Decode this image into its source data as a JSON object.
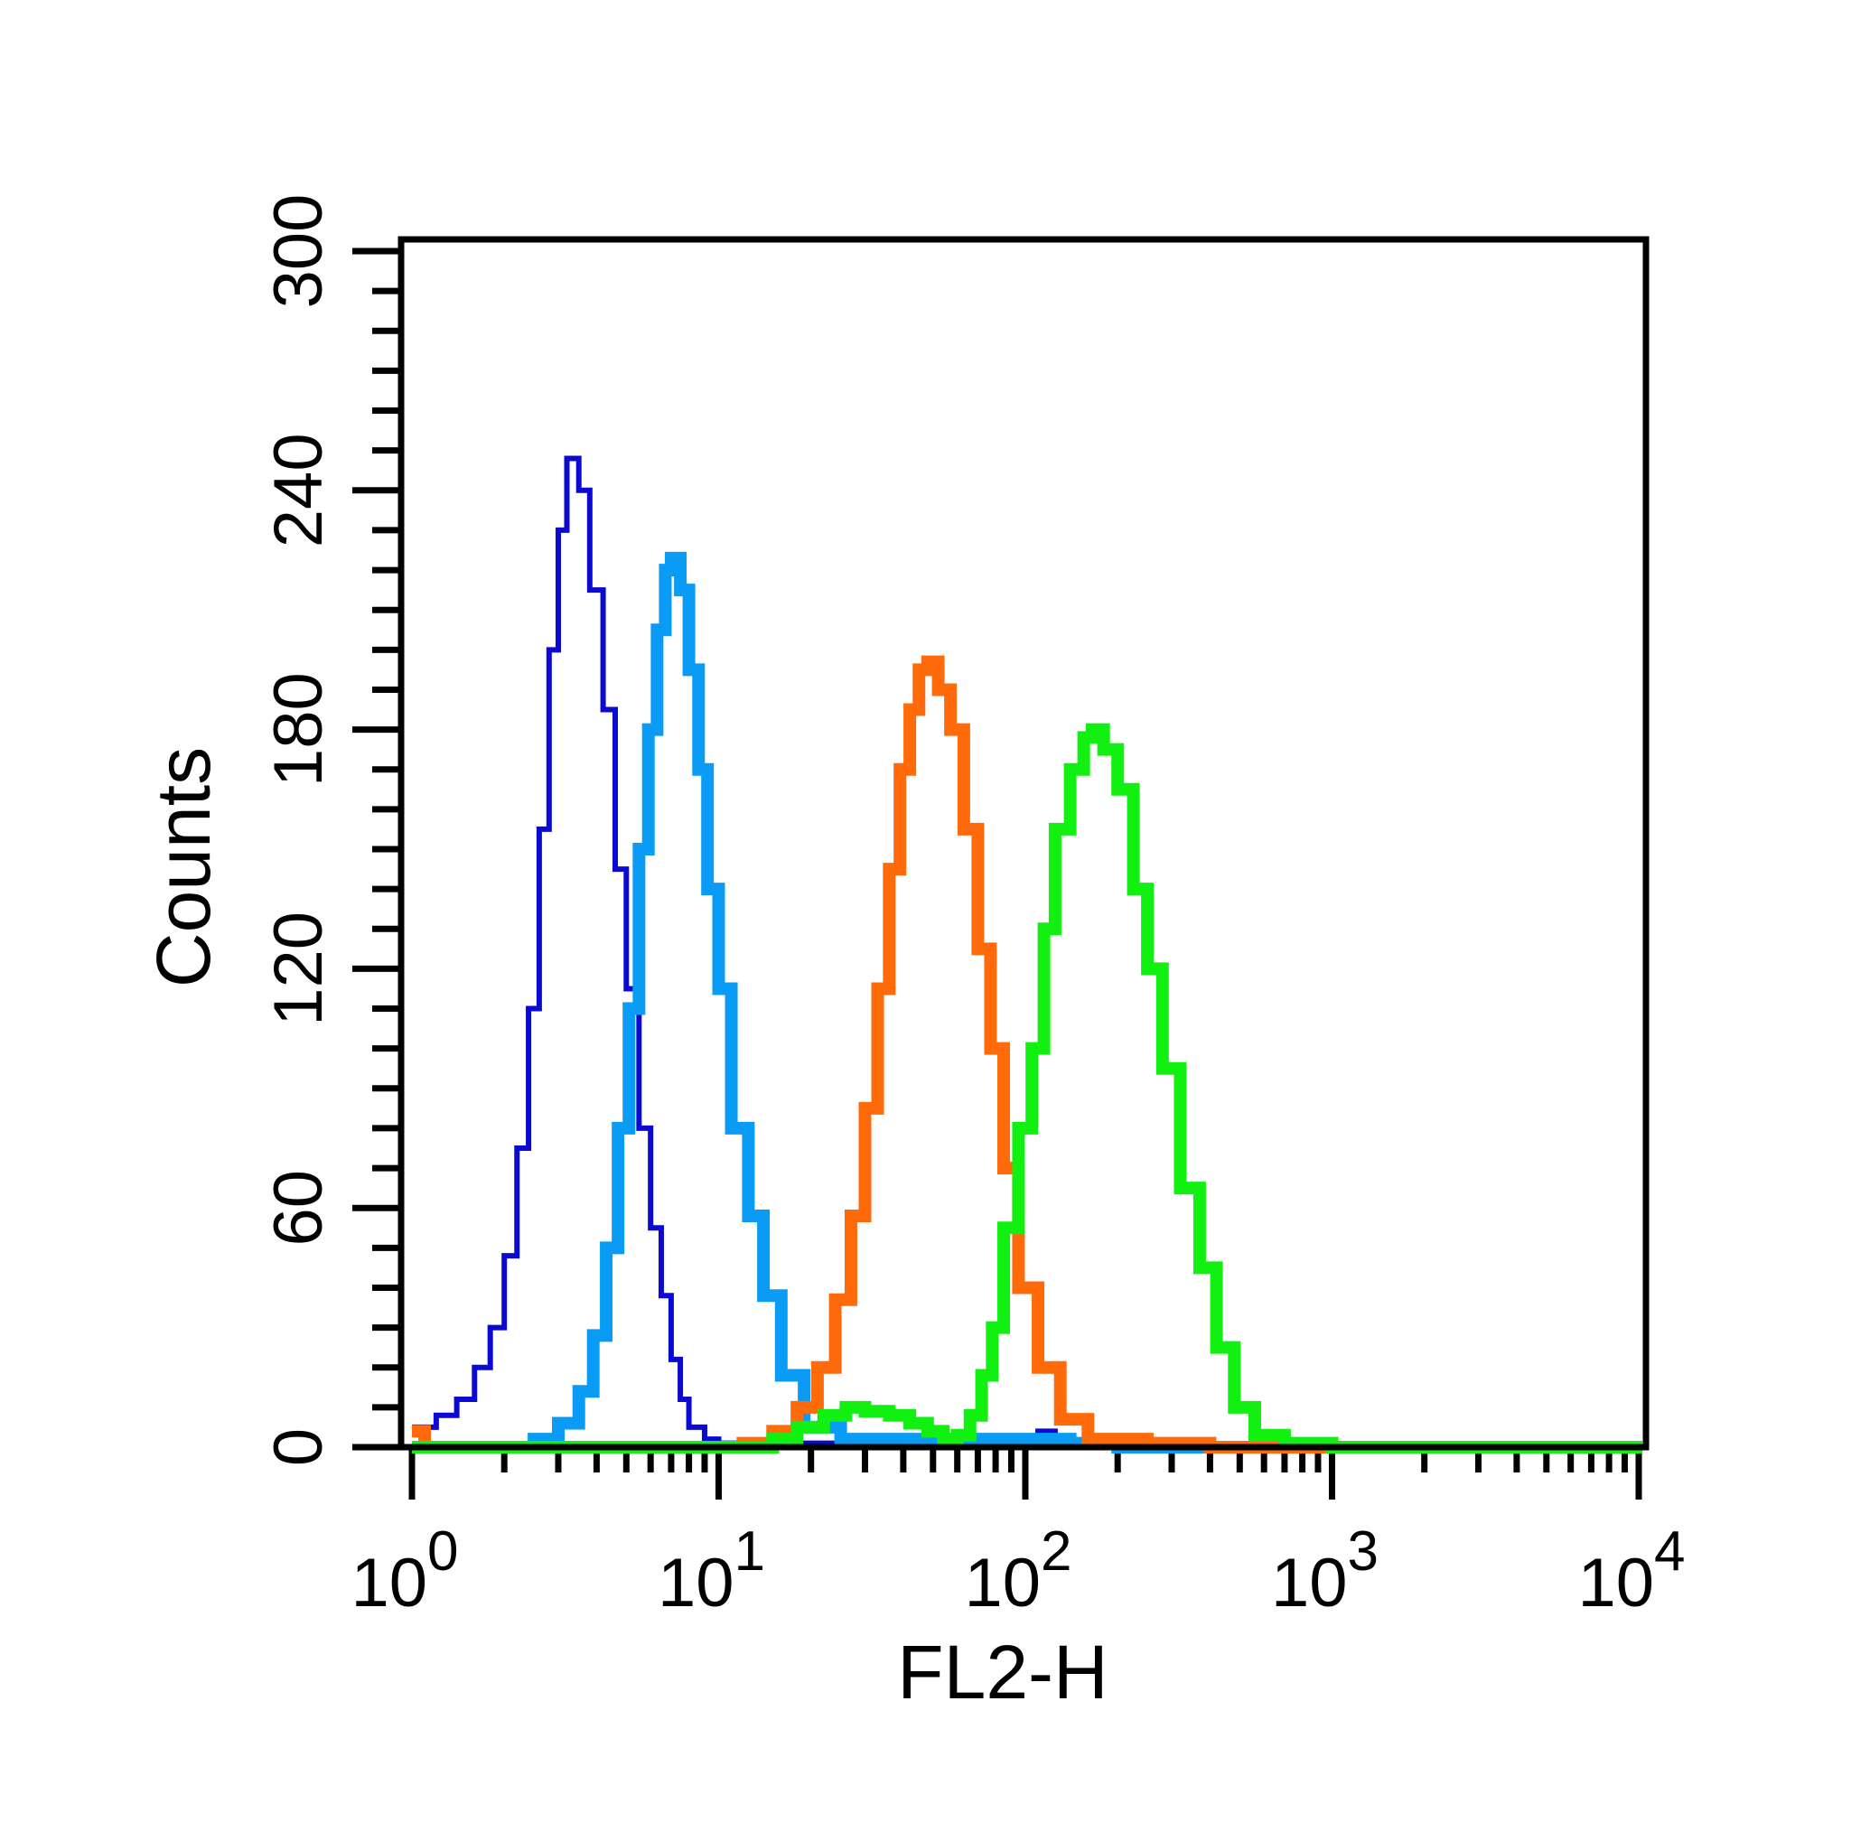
{
  "chart_data": {
    "type": "histogram",
    "xlabel": "FL2-H",
    "ylabel": "Counts",
    "xscale": "log",
    "xlim": [
      1,
      10000
    ],
    "ylim": [
      0,
      300
    ],
    "grid": false,
    "yticks": [
      0,
      60,
      120,
      180,
      240,
      300
    ],
    "xticks": [
      {
        "value": 1,
        "base": "10",
        "exp": "0"
      },
      {
        "value": 10,
        "base": "10",
        "exp": "1"
      },
      {
        "value": 100,
        "base": "10",
        "exp": "2"
      },
      {
        "value": 1000,
        "base": "10",
        "exp": "3"
      },
      {
        "value": 10000,
        "base": "10",
        "exp": "4"
      }
    ],
    "series": [
      {
        "color": "#0a0ad2",
        "peak_x": 3.2,
        "peak_y": 248,
        "points": [
          [
            1.0,
            5
          ],
          [
            1.2,
            8
          ],
          [
            1.4,
            12
          ],
          [
            1.6,
            20
          ],
          [
            1.8,
            30
          ],
          [
            2.0,
            48
          ],
          [
            2.2,
            75
          ],
          [
            2.4,
            110
          ],
          [
            2.6,
            155
          ],
          [
            2.8,
            200
          ],
          [
            3.0,
            230
          ],
          [
            3.2,
            248
          ],
          [
            3.5,
            240
          ],
          [
            3.8,
            215
          ],
          [
            4.2,
            185
          ],
          [
            4.6,
            145
          ],
          [
            5.0,
            115
          ],
          [
            5.5,
            80
          ],
          [
            6.0,
            55
          ],
          [
            6.5,
            38
          ],
          [
            7.0,
            22
          ],
          [
            7.5,
            12
          ],
          [
            8.0,
            5
          ],
          [
            9.0,
            2
          ],
          [
            10,
            1
          ],
          [
            100,
            1
          ],
          [
            110,
            4
          ],
          [
            125,
            0
          ],
          [
            10000,
            0
          ]
        ]
      },
      {
        "color": "#0a9cf5",
        "peak_x": 7.0,
        "peak_y": 223,
        "points": [
          [
            1.0,
            0
          ],
          [
            2.0,
            0
          ],
          [
            2.5,
            2
          ],
          [
            3.0,
            6
          ],
          [
            3.5,
            14
          ],
          [
            3.9,
            28
          ],
          [
            4.3,
            50
          ],
          [
            4.7,
            80
          ],
          [
            5.1,
            110
          ],
          [
            5.5,
            150
          ],
          [
            5.9,
            180
          ],
          [
            6.3,
            205
          ],
          [
            6.7,
            220
          ],
          [
            7.0,
            223
          ],
          [
            7.5,
            215
          ],
          [
            8.0,
            195
          ],
          [
            8.6,
            170
          ],
          [
            9.2,
            140
          ],
          [
            10.0,
            115
          ],
          [
            11.0,
            80
          ],
          [
            12.5,
            58
          ],
          [
            14.0,
            38
          ],
          [
            16.0,
            18
          ],
          [
            19.0,
            5
          ],
          [
            25.0,
            2
          ],
          [
            40,
            2
          ],
          [
            60,
            2
          ],
          [
            90,
            2
          ],
          [
            140,
            1
          ],
          [
            200,
            0
          ],
          [
            10000,
            0
          ]
        ]
      },
      {
        "color": "#ff6a0a",
        "peak_x": 48,
        "peak_y": 197,
        "points": [
          [
            1.0,
            4
          ],
          [
            1.1,
            0
          ],
          [
            8,
            0
          ],
          [
            12,
            1
          ],
          [
            15,
            4
          ],
          [
            18,
            10
          ],
          [
            21,
            20
          ],
          [
            24,
            37
          ],
          [
            27,
            58
          ],
          [
            30,
            85
          ],
          [
            33,
            115
          ],
          [
            36,
            145
          ],
          [
            39,
            170
          ],
          [
            42,
            185
          ],
          [
            45,
            195
          ],
          [
            48,
            197
          ],
          [
            52,
            190
          ],
          [
            57,
            180
          ],
          [
            63,
            155
          ],
          [
            70,
            125
          ],
          [
            77,
            100
          ],
          [
            85,
            70
          ],
          [
            95,
            40
          ],
          [
            110,
            20
          ],
          [
            130,
            7
          ],
          [
            160,
            2
          ],
          [
            250,
            1
          ],
          [
            400,
            0
          ],
          [
            10000,
            0
          ]
        ]
      },
      {
        "color": "#12f012",
        "peak_x": 165,
        "peak_y": 180,
        "points": [
          [
            1.0,
            0
          ],
          [
            10,
            0
          ],
          [
            15,
            2
          ],
          [
            18,
            5
          ],
          [
            22,
            8
          ],
          [
            26,
            10
          ],
          [
            30,
            9
          ],
          [
            36,
            8
          ],
          [
            42,
            6
          ],
          [
            48,
            4
          ],
          [
            54,
            2
          ],
          [
            60,
            3
          ],
          [
            66,
            8
          ],
          [
            72,
            18
          ],
          [
            78,
            30
          ],
          [
            85,
            55
          ],
          [
            95,
            80
          ],
          [
            105,
            100
          ],
          [
            115,
            130
          ],
          [
            125,
            155
          ],
          [
            140,
            170
          ],
          [
            155,
            178
          ],
          [
            165,
            180
          ],
          [
            180,
            175
          ],
          [
            200,
            165
          ],
          [
            225,
            140
          ],
          [
            250,
            120
          ],
          [
            280,
            95
          ],
          [
            320,
            65
          ],
          [
            370,
            45
          ],
          [
            420,
            25
          ],
          [
            480,
            10
          ],
          [
            560,
            3
          ],
          [
            700,
            1
          ],
          [
            1000,
            0
          ],
          [
            10000,
            0
          ]
        ]
      }
    ]
  }
}
